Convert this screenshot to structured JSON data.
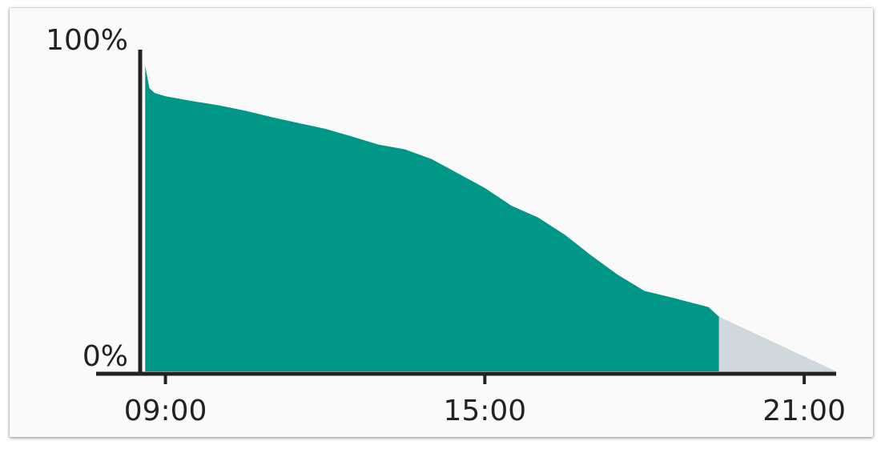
{
  "chart_data": {
    "type": "area",
    "title": "",
    "xlabel": "",
    "ylabel": "",
    "y_tick_labels": [
      "100%",
      "0%"
    ],
    "x_tick_labels": [
      "09:00",
      "15:00",
      "21:00"
    ],
    "x_unit": "hours",
    "xlim": [
      8.6,
      21.6
    ],
    "ylim": [
      0,
      100
    ],
    "grid": false,
    "series": [
      {
        "style": "actual",
        "color": "#009688",
        "x": [
          8.62,
          8.7,
          8.8,
          9.0,
          9.5,
          10.0,
          10.5,
          11.0,
          11.5,
          12.0,
          12.5,
          13.0,
          13.5,
          14.0,
          14.5,
          15.0,
          15.5,
          16.0,
          16.5,
          17.0,
          17.5,
          18.0,
          18.5,
          18.85,
          19.2,
          19.4
        ],
        "y": [
          95.0,
          88.0,
          86.5,
          85.5,
          84.0,
          82.7,
          81.0,
          79.0,
          77.2,
          75.4,
          73.0,
          70.5,
          69.0,
          66.0,
          61.5,
          57.0,
          51.5,
          47.8,
          42.5,
          36.0,
          30.0,
          25.0,
          23.0,
          21.5,
          20.0,
          17.0
        ]
      },
      {
        "style": "projected",
        "color": "#cfd8dc",
        "x": [
          19.4,
          21.6
        ],
        "y": [
          17.0,
          0.0
        ]
      }
    ]
  }
}
